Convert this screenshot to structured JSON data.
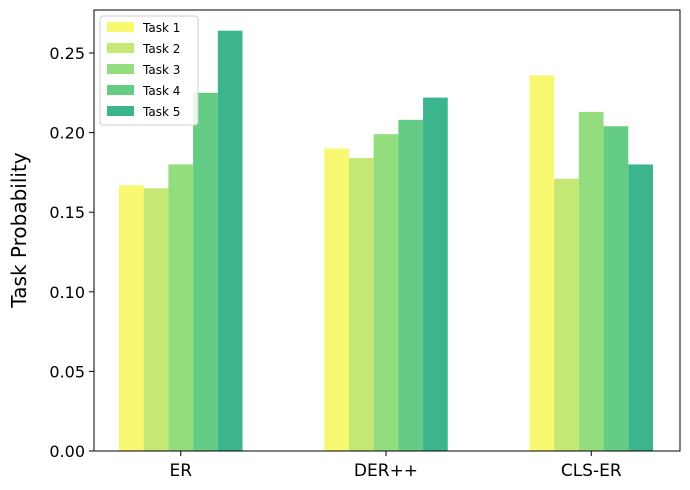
{
  "chart_data": {
    "type": "bar",
    "title": "",
    "xlabel": "",
    "ylabel": "Task Probability",
    "categories": [
      "ER",
      "DER++",
      "CLS-ER"
    ],
    "series": [
      {
        "name": "Task 1",
        "color": "#f9f871",
        "values": [
          0.167,
          0.19,
          0.236
        ]
      },
      {
        "name": "Task 2",
        "color": "#c5e773",
        "values": [
          0.165,
          0.184,
          0.171
        ]
      },
      {
        "name": "Task 3",
        "color": "#93dd7f",
        "values": [
          0.18,
          0.199,
          0.213
        ]
      },
      {
        "name": "Task 4",
        "color": "#65cc86",
        "values": [
          0.225,
          0.208,
          0.204
        ]
      },
      {
        "name": "Task 5",
        "color": "#3cb58f",
        "values": [
          0.264,
          0.222,
          0.18
        ]
      }
    ],
    "ylim": [
      0,
      0.277
    ],
    "yticks": [
      0.0,
      0.05,
      0.1,
      0.15,
      0.2,
      0.25
    ],
    "ytick_labels": [
      "0.00",
      "0.05",
      "0.10",
      "0.15",
      "0.20",
      "0.25"
    ],
    "grid": false,
    "legend_position": "top-left"
  }
}
